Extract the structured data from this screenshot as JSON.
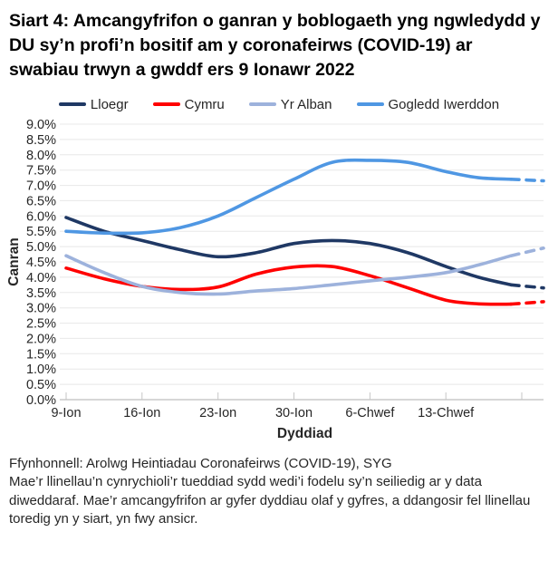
{
  "title": "Siart 4: Amcangyfrifon o ganran y boblogaeth yng ngwledydd y DU sy’n profi’n bositif am y coronafeirws (COVID-19) ar swabiau trwyn a gwddf ers 9 Ionawr 2022",
  "chart_data": {
    "type": "line",
    "xlabel": "Dyddiad",
    "ylabel": "Canran",
    "ylim": [
      0,
      9
    ],
    "ytick_step": 0.5,
    "ytick_suffix": "%",
    "grid": "horizontal",
    "legend_position": "top",
    "x_range_days": [
      0,
      44
    ],
    "x_start_date": "9 Ionawr 2022",
    "x_tick_days": [
      0,
      7,
      14,
      21,
      28,
      35,
      42
    ],
    "x_tick_labels": [
      "9-Ion",
      "16-Ion",
      "23-Ion",
      "30-Ion",
      "6-Chwef",
      "13-Chwef",
      ""
    ],
    "x_days": [
      0,
      3.5,
      7,
      10.5,
      14,
      17.5,
      21,
      24.5,
      28,
      31.5,
      35,
      38,
      41,
      44
    ],
    "dashed_from_index": 12,
    "dashed_meaning": "llinellau toredig = amcangyfrifon mwy ansicr ar gyfer dyddiau olaf y gyfres",
    "series": [
      {
        "name": "Lloegr",
        "color": "#1F3864",
        "values": [
          5.95,
          5.5,
          5.2,
          4.9,
          4.67,
          4.8,
          5.1,
          5.2,
          5.1,
          4.8,
          4.35,
          4.0,
          3.75,
          3.65
        ]
      },
      {
        "name": "Cymru",
        "color": "#FF0000",
        "values": [
          4.3,
          3.95,
          3.7,
          3.6,
          3.68,
          4.1,
          4.33,
          4.35,
          4.05,
          3.65,
          3.25,
          3.13,
          3.12,
          3.2
        ]
      },
      {
        "name": "Yr Alban",
        "color": "#9DB2DC",
        "values": [
          4.7,
          4.15,
          3.7,
          3.5,
          3.45,
          3.55,
          3.63,
          3.75,
          3.88,
          4.0,
          4.15,
          4.4,
          4.7,
          4.95
        ]
      },
      {
        "name": "Gogledd Iwerddon",
        "color": "#4F97E3",
        "values": [
          5.5,
          5.44,
          5.45,
          5.62,
          6.0,
          6.6,
          7.2,
          7.75,
          7.82,
          7.75,
          7.45,
          7.25,
          7.2,
          7.15
        ]
      }
    ]
  },
  "footer": {
    "source": "Ffynhonnell: Arolwg Heintiadau Coronafeirws (COVID-19), SYG",
    "note": "Mae’r llinellau’n cynrychioli’r tueddiad sydd wedi’i fodelu sy’n seiliedig ar y data diweddaraf. Mae’r amcangyfrifon ar gyfer dyddiau olaf y gyfres, a ddangosir fel llinellau toredig yn y siart, yn fwy ansicr."
  }
}
